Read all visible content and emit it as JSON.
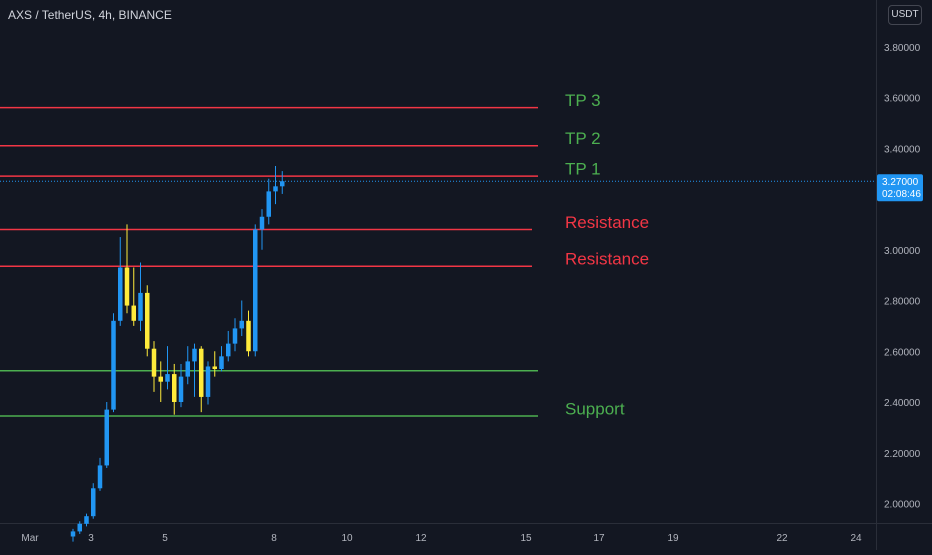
{
  "header": {
    "symbol_title": "AXS / TetherUS, 4h, BINANCE",
    "currency": "USDT"
  },
  "chart_data": {
    "type": "candlestick",
    "x_tick_labels": [
      "Mar",
      "3",
      "5",
      "8",
      "10",
      "12",
      "15",
      "17",
      "19",
      "22",
      "24"
    ],
    "y_tick_labels": [
      "2.00000",
      "2.20000",
      "2.40000",
      "2.60000",
      "2.80000",
      "3.00000",
      "3.40000",
      "3.60000",
      "3.80000"
    ],
    "ylim": [
      1.89,
      3.95
    ],
    "current_price": {
      "value": 3.27,
      "label": "3.27000",
      "countdown": "02:08:46",
      "color": "#2196f3"
    },
    "levels": [
      {
        "value": 3.56,
        "label": "TP 3",
        "line_color": "#f23645",
        "label_color": "#4caf50"
      },
      {
        "value": 3.41,
        "label": "TP 2",
        "line_color": "#f23645",
        "label_color": "#4caf50"
      },
      {
        "value": 3.29,
        "label": "TP 1",
        "line_color": "#f23645",
        "label_color": "#4caf50"
      },
      {
        "value": 3.08,
        "label": "Resistance",
        "line_color": "#f23645",
        "label_color": "#f23645"
      },
      {
        "value": 2.935,
        "label": "Resistance",
        "line_color": "#f23645",
        "label_color": "#f23645"
      },
      {
        "value": 2.523,
        "label": "",
        "line_color": "#4caf50",
        "label_color": "#4caf50"
      },
      {
        "value": 2.345,
        "label": "Support",
        "line_color": "#4caf50",
        "label_color": "#4caf50"
      }
    ],
    "candle_colors": {
      "up": "#2196f3",
      "down": "#ffeb3b"
    },
    "candles": [
      {
        "o": 1.87,
        "h": 1.9,
        "l": 1.85,
        "c": 1.89
      },
      {
        "o": 1.89,
        "h": 1.93,
        "l": 1.88,
        "c": 1.92
      },
      {
        "o": 1.92,
        "h": 1.96,
        "l": 1.91,
        "c": 1.95
      },
      {
        "o": 1.95,
        "h": 2.08,
        "l": 1.94,
        "c": 2.06
      },
      {
        "o": 2.06,
        "h": 2.18,
        "l": 2.05,
        "c": 2.15
      },
      {
        "o": 2.15,
        "h": 2.4,
        "l": 2.14,
        "c": 2.37
      },
      {
        "o": 2.37,
        "h": 2.75,
        "l": 2.36,
        "c": 2.72
      },
      {
        "o": 2.72,
        "h": 3.05,
        "l": 2.7,
        "c": 2.93
      },
      {
        "o": 2.93,
        "h": 3.1,
        "l": 2.75,
        "c": 2.78
      },
      {
        "o": 2.78,
        "h": 2.93,
        "l": 2.7,
        "c": 2.72
      },
      {
        "o": 2.72,
        "h": 2.95,
        "l": 2.68,
        "c": 2.83
      },
      {
        "o": 2.83,
        "h": 2.86,
        "l": 2.58,
        "c": 2.61
      },
      {
        "o": 2.61,
        "h": 2.64,
        "l": 2.44,
        "c": 2.5
      },
      {
        "o": 2.5,
        "h": 2.56,
        "l": 2.4,
        "c": 2.48
      },
      {
        "o": 2.48,
        "h": 2.62,
        "l": 2.45,
        "c": 2.51
      },
      {
        "o": 2.51,
        "h": 2.55,
        "l": 2.35,
        "c": 2.4
      },
      {
        "o": 2.4,
        "h": 2.55,
        "l": 2.38,
        "c": 2.5
      },
      {
        "o": 2.5,
        "h": 2.62,
        "l": 2.47,
        "c": 2.56
      },
      {
        "o": 2.56,
        "h": 2.63,
        "l": 2.42,
        "c": 2.61
      },
      {
        "o": 2.61,
        "h": 2.62,
        "l": 2.36,
        "c": 2.42
      },
      {
        "o": 2.42,
        "h": 2.56,
        "l": 2.39,
        "c": 2.54
      },
      {
        "o": 2.54,
        "h": 2.6,
        "l": 2.5,
        "c": 2.53
      },
      {
        "o": 2.53,
        "h": 2.62,
        "l": 2.52,
        "c": 2.58
      },
      {
        "o": 2.58,
        "h": 2.68,
        "l": 2.56,
        "c": 2.63
      },
      {
        "o": 2.63,
        "h": 2.73,
        "l": 2.6,
        "c": 2.69
      },
      {
        "o": 2.69,
        "h": 2.8,
        "l": 2.66,
        "c": 2.72
      },
      {
        "o": 2.72,
        "h": 2.76,
        "l": 2.58,
        "c": 2.6
      },
      {
        "o": 2.6,
        "h": 3.1,
        "l": 2.58,
        "c": 3.08
      },
      {
        "o": 3.08,
        "h": 3.16,
        "l": 3.0,
        "c": 3.13
      },
      {
        "o": 3.13,
        "h": 3.28,
        "l": 3.1,
        "c": 3.23
      },
      {
        "o": 3.23,
        "h": 3.33,
        "l": 3.18,
        "c": 3.25
      },
      {
        "o": 3.25,
        "h": 3.31,
        "l": 3.22,
        "c": 3.27
      }
    ]
  }
}
